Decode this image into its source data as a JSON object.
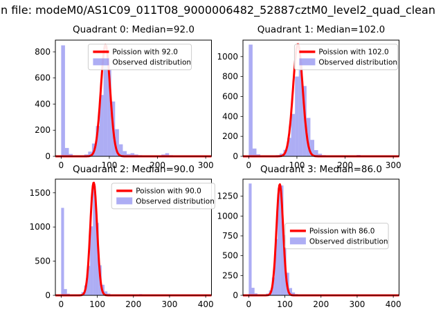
{
  "figure_title": "n file: modeM0/AS1C09_011T08_9000006482_52887cztM0_level2_quad_clean",
  "colors": {
    "poisson": "#ff0000",
    "observed_fill": "#7b7bee",
    "axis": "#000000",
    "legend_border": "#cccccc"
  },
  "chart_data": [
    {
      "type": "bar",
      "quadrant": 0,
      "title": "Quadrant 0: Median=92.0",
      "median": 92.0,
      "legend": [
        "Poission with 92.0",
        "Observed distribution"
      ],
      "legend_pos": {
        "x": 0.21,
        "y": 0.035
      },
      "xlim": [
        -12,
        312
      ],
      "ylim": [
        0,
        890
      ],
      "xticks": [
        0,
        100,
        200,
        300
      ],
      "yticks": [
        0,
        200,
        400,
        600,
        800
      ],
      "bin_width": 8,
      "bars": [
        [
          0,
          850
        ],
        [
          8,
          64
        ],
        [
          16,
          18
        ],
        [
          24,
          7
        ],
        [
          32,
          4
        ],
        [
          40,
          6
        ],
        [
          48,
          14
        ],
        [
          56,
          36
        ],
        [
          64,
          98
        ],
        [
          72,
          232
        ],
        [
          80,
          470
        ],
        [
          88,
          705
        ],
        [
          96,
          662
        ],
        [
          104,
          420
        ],
        [
          112,
          208
        ],
        [
          120,
          92
        ],
        [
          128,
          40
        ],
        [
          136,
          18
        ],
        [
          144,
          24
        ],
        [
          152,
          14
        ],
        [
          160,
          9
        ],
        [
          168,
          7
        ],
        [
          176,
          5
        ],
        [
          184,
          4
        ],
        [
          192,
          4
        ],
        [
          200,
          4
        ],
        [
          208,
          14
        ],
        [
          216,
          24
        ],
        [
          224,
          9
        ],
        [
          232,
          4
        ],
        [
          240,
          2
        ],
        [
          248,
          2
        ],
        [
          256,
          2
        ],
        [
          264,
          1
        ],
        [
          272,
          1
        ],
        [
          280,
          1
        ],
        [
          288,
          1
        ],
        [
          296,
          2
        ]
      ],
      "poisson": {
        "lambda": 92.0,
        "peak": 855
      }
    },
    {
      "type": "bar",
      "quadrant": 1,
      "title": "Quadrant 1: Median=102.0",
      "median": 102.0,
      "legend": [
        "Poission with 102.0",
        "Observed distribution"
      ],
      "legend_pos": {
        "x": 0.33,
        "y": 0.035
      },
      "xlim": [
        -12,
        312
      ],
      "ylim": [
        0,
        1165
      ],
      "xticks": [
        0,
        100,
        200,
        300
      ],
      "yticks": [
        0,
        200,
        400,
        600,
        800,
        1000
      ],
      "bin_width": 8,
      "bars": [
        [
          0,
          1120
        ],
        [
          8,
          78
        ],
        [
          16,
          20
        ],
        [
          24,
          8
        ],
        [
          32,
          5
        ],
        [
          40,
          5
        ],
        [
          48,
          7
        ],
        [
          56,
          12
        ],
        [
          64,
          28
        ],
        [
          72,
          65
        ],
        [
          80,
          185
        ],
        [
          88,
          425
        ],
        [
          96,
          800
        ],
        [
          104,
          945
        ],
        [
          112,
          705
        ],
        [
          120,
          385
        ],
        [
          128,
          165
        ],
        [
          136,
          62
        ],
        [
          144,
          26
        ],
        [
          152,
          12
        ],
        [
          160,
          8
        ],
        [
          168,
          6
        ],
        [
          176,
          5
        ],
        [
          184,
          4
        ],
        [
          192,
          4
        ],
        [
          200,
          4
        ],
        [
          208,
          5
        ],
        [
          216,
          10
        ],
        [
          224,
          14
        ],
        [
          232,
          6
        ],
        [
          240,
          3
        ],
        [
          248,
          2
        ],
        [
          256,
          2
        ],
        [
          264,
          2
        ],
        [
          272,
          1
        ],
        [
          280,
          1
        ],
        [
          288,
          1
        ],
        [
          296,
          2
        ]
      ],
      "poisson": {
        "lambda": 102.0,
        "peak": 1125
      }
    },
    {
      "type": "bar",
      "quadrant": 2,
      "title": "Quadrant 2: Median=90.0",
      "median": 90.0,
      "legend": [
        "Poission with 90.0",
        "Observed distribution"
      ],
      "legend_pos": {
        "x": 0.36,
        "y": 0.035
      },
      "xlim": [
        -16,
        416
      ],
      "ylim": [
        0,
        1700
      ],
      "xticks": [
        0,
        100,
        200,
        300,
        400
      ],
      "yticks": [
        0,
        500,
        1000,
        1500
      ],
      "bin_width": 8,
      "bars": [
        [
          0,
          1280
        ],
        [
          8,
          92
        ],
        [
          16,
          24
        ],
        [
          24,
          9
        ],
        [
          32,
          5
        ],
        [
          40,
          8
        ],
        [
          48,
          16
        ],
        [
          56,
          48
        ],
        [
          64,
          145
        ],
        [
          72,
          430
        ],
        [
          80,
          1010
        ],
        [
          88,
          1600
        ],
        [
          96,
          1060
        ],
        [
          104,
          440
        ],
        [
          112,
          155
        ],
        [
          120,
          58
        ],
        [
          128,
          26
        ],
        [
          136,
          13
        ],
        [
          144,
          8
        ],
        [
          152,
          6
        ],
        [
          160,
          5
        ],
        [
          168,
          4
        ],
        [
          176,
          4
        ],
        [
          184,
          3
        ],
        [
          192,
          3
        ],
        [
          200,
          3
        ],
        [
          208,
          12
        ],
        [
          216,
          18
        ],
        [
          224,
          7
        ],
        [
          232,
          3
        ],
        [
          240,
          2
        ],
        [
          256,
          2
        ],
        [
          272,
          1
        ],
        [
          288,
          1
        ],
        [
          304,
          1
        ],
        [
          320,
          1
        ],
        [
          352,
          1
        ],
        [
          384,
          1
        ],
        [
          400,
          2
        ]
      ],
      "poisson": {
        "lambda": 90.0,
        "peak": 1650
      }
    },
    {
      "type": "bar",
      "quadrant": 3,
      "title": "Quadrant 3: Median=86.0",
      "median": 86.0,
      "legend": [
        "Poission with 86.0",
        "Observed distribution"
      ],
      "legend_pos": {
        "x": 0.27,
        "y": 0.38
      },
      "xlim": [
        -16,
        416
      ],
      "ylim": [
        0,
        1465
      ],
      "xticks": [
        0,
        100,
        200,
        300,
        400
      ],
      "yticks": [
        0,
        250,
        500,
        750,
        1000,
        1250
      ],
      "bin_width": 8,
      "bars": [
        [
          0,
          1410
        ],
        [
          8,
          95
        ],
        [
          16,
          25
        ],
        [
          24,
          9
        ],
        [
          32,
          5
        ],
        [
          40,
          9
        ],
        [
          48,
          22
        ],
        [
          56,
          62
        ],
        [
          64,
          225
        ],
        [
          72,
          710
        ],
        [
          80,
          1355
        ],
        [
          88,
          1385
        ],
        [
          96,
          760
        ],
        [
          104,
          285
        ],
        [
          112,
          92
        ],
        [
          120,
          36
        ],
        [
          128,
          16
        ],
        [
          136,
          9
        ],
        [
          144,
          6
        ],
        [
          152,
          5
        ],
        [
          160,
          4
        ],
        [
          168,
          4
        ],
        [
          176,
          3
        ],
        [
          184,
          3
        ],
        [
          192,
          3
        ],
        [
          200,
          9
        ],
        [
          208,
          13
        ],
        [
          216,
          5
        ],
        [
          224,
          3
        ],
        [
          232,
          2
        ],
        [
          240,
          2
        ],
        [
          256,
          1
        ],
        [
          272,
          1
        ],
        [
          288,
          1
        ],
        [
          304,
          1
        ],
        [
          336,
          1
        ],
        [
          368,
          1
        ],
        [
          400,
          1
        ]
      ],
      "poisson": {
        "lambda": 86.0,
        "peak": 1400
      }
    }
  ]
}
